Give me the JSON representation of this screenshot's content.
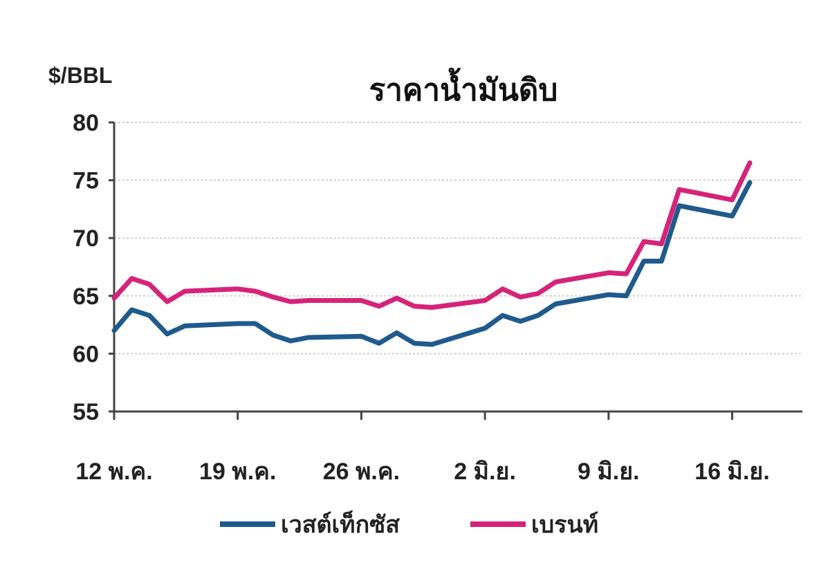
{
  "chart_data": {
    "type": "line",
    "title": "ราคาน้ำมันดิบ",
    "ylabel": "$/BBL",
    "xlabel": "",
    "ylim": [
      55,
      80
    ],
    "yticks": [
      55,
      60,
      65,
      70,
      75,
      80
    ],
    "grid": true,
    "legend_placement": "bottom",
    "xticks": [
      {
        "date": "05-12",
        "label": "12 พ.ค."
      },
      {
        "date": "05-19",
        "label": "19 พ.ค."
      },
      {
        "date": "05-26",
        "label": "26 พ.ค."
      },
      {
        "date": "06-02",
        "label": "2 มิ.ย."
      },
      {
        "date": "06-09",
        "label": "9 มิ.ย."
      },
      {
        "date": "06-16",
        "label": "16 มิ.ย."
      }
    ],
    "x": [
      "05-12",
      "05-13",
      "05-14",
      "05-15",
      "05-16",
      "05-19",
      "05-20",
      "05-21",
      "05-22",
      "05-23",
      "05-26",
      "05-27",
      "05-28",
      "05-29",
      "05-30",
      "06-02",
      "06-03",
      "06-04",
      "06-05",
      "06-06",
      "06-09",
      "06-10",
      "06-11",
      "06-12",
      "06-13",
      "06-16",
      "06-17"
    ],
    "series": [
      {
        "name": "เวสต์เท็กซัส",
        "color": "#1f5a8c",
        "values": [
          62.0,
          63.8,
          63.3,
          61.7,
          62.4,
          62.6,
          62.6,
          61.6,
          61.1,
          61.4,
          61.5,
          60.9,
          61.8,
          60.9,
          60.8,
          62.2,
          63.3,
          62.8,
          63.3,
          64.3,
          65.1,
          65.0,
          68.0,
          68.0,
          72.8,
          71.9,
          74.8
        ]
      },
      {
        "name": "เบรนท์",
        "color": "#d6237a",
        "values": [
          64.8,
          66.5,
          66.0,
          64.5,
          65.4,
          65.6,
          65.4,
          64.9,
          64.5,
          64.6,
          64.6,
          64.1,
          64.8,
          64.1,
          64.0,
          64.6,
          65.6,
          64.9,
          65.2,
          66.2,
          67.0,
          66.9,
          69.7,
          69.5,
          74.2,
          73.3,
          76.5
        ]
      }
    ]
  }
}
